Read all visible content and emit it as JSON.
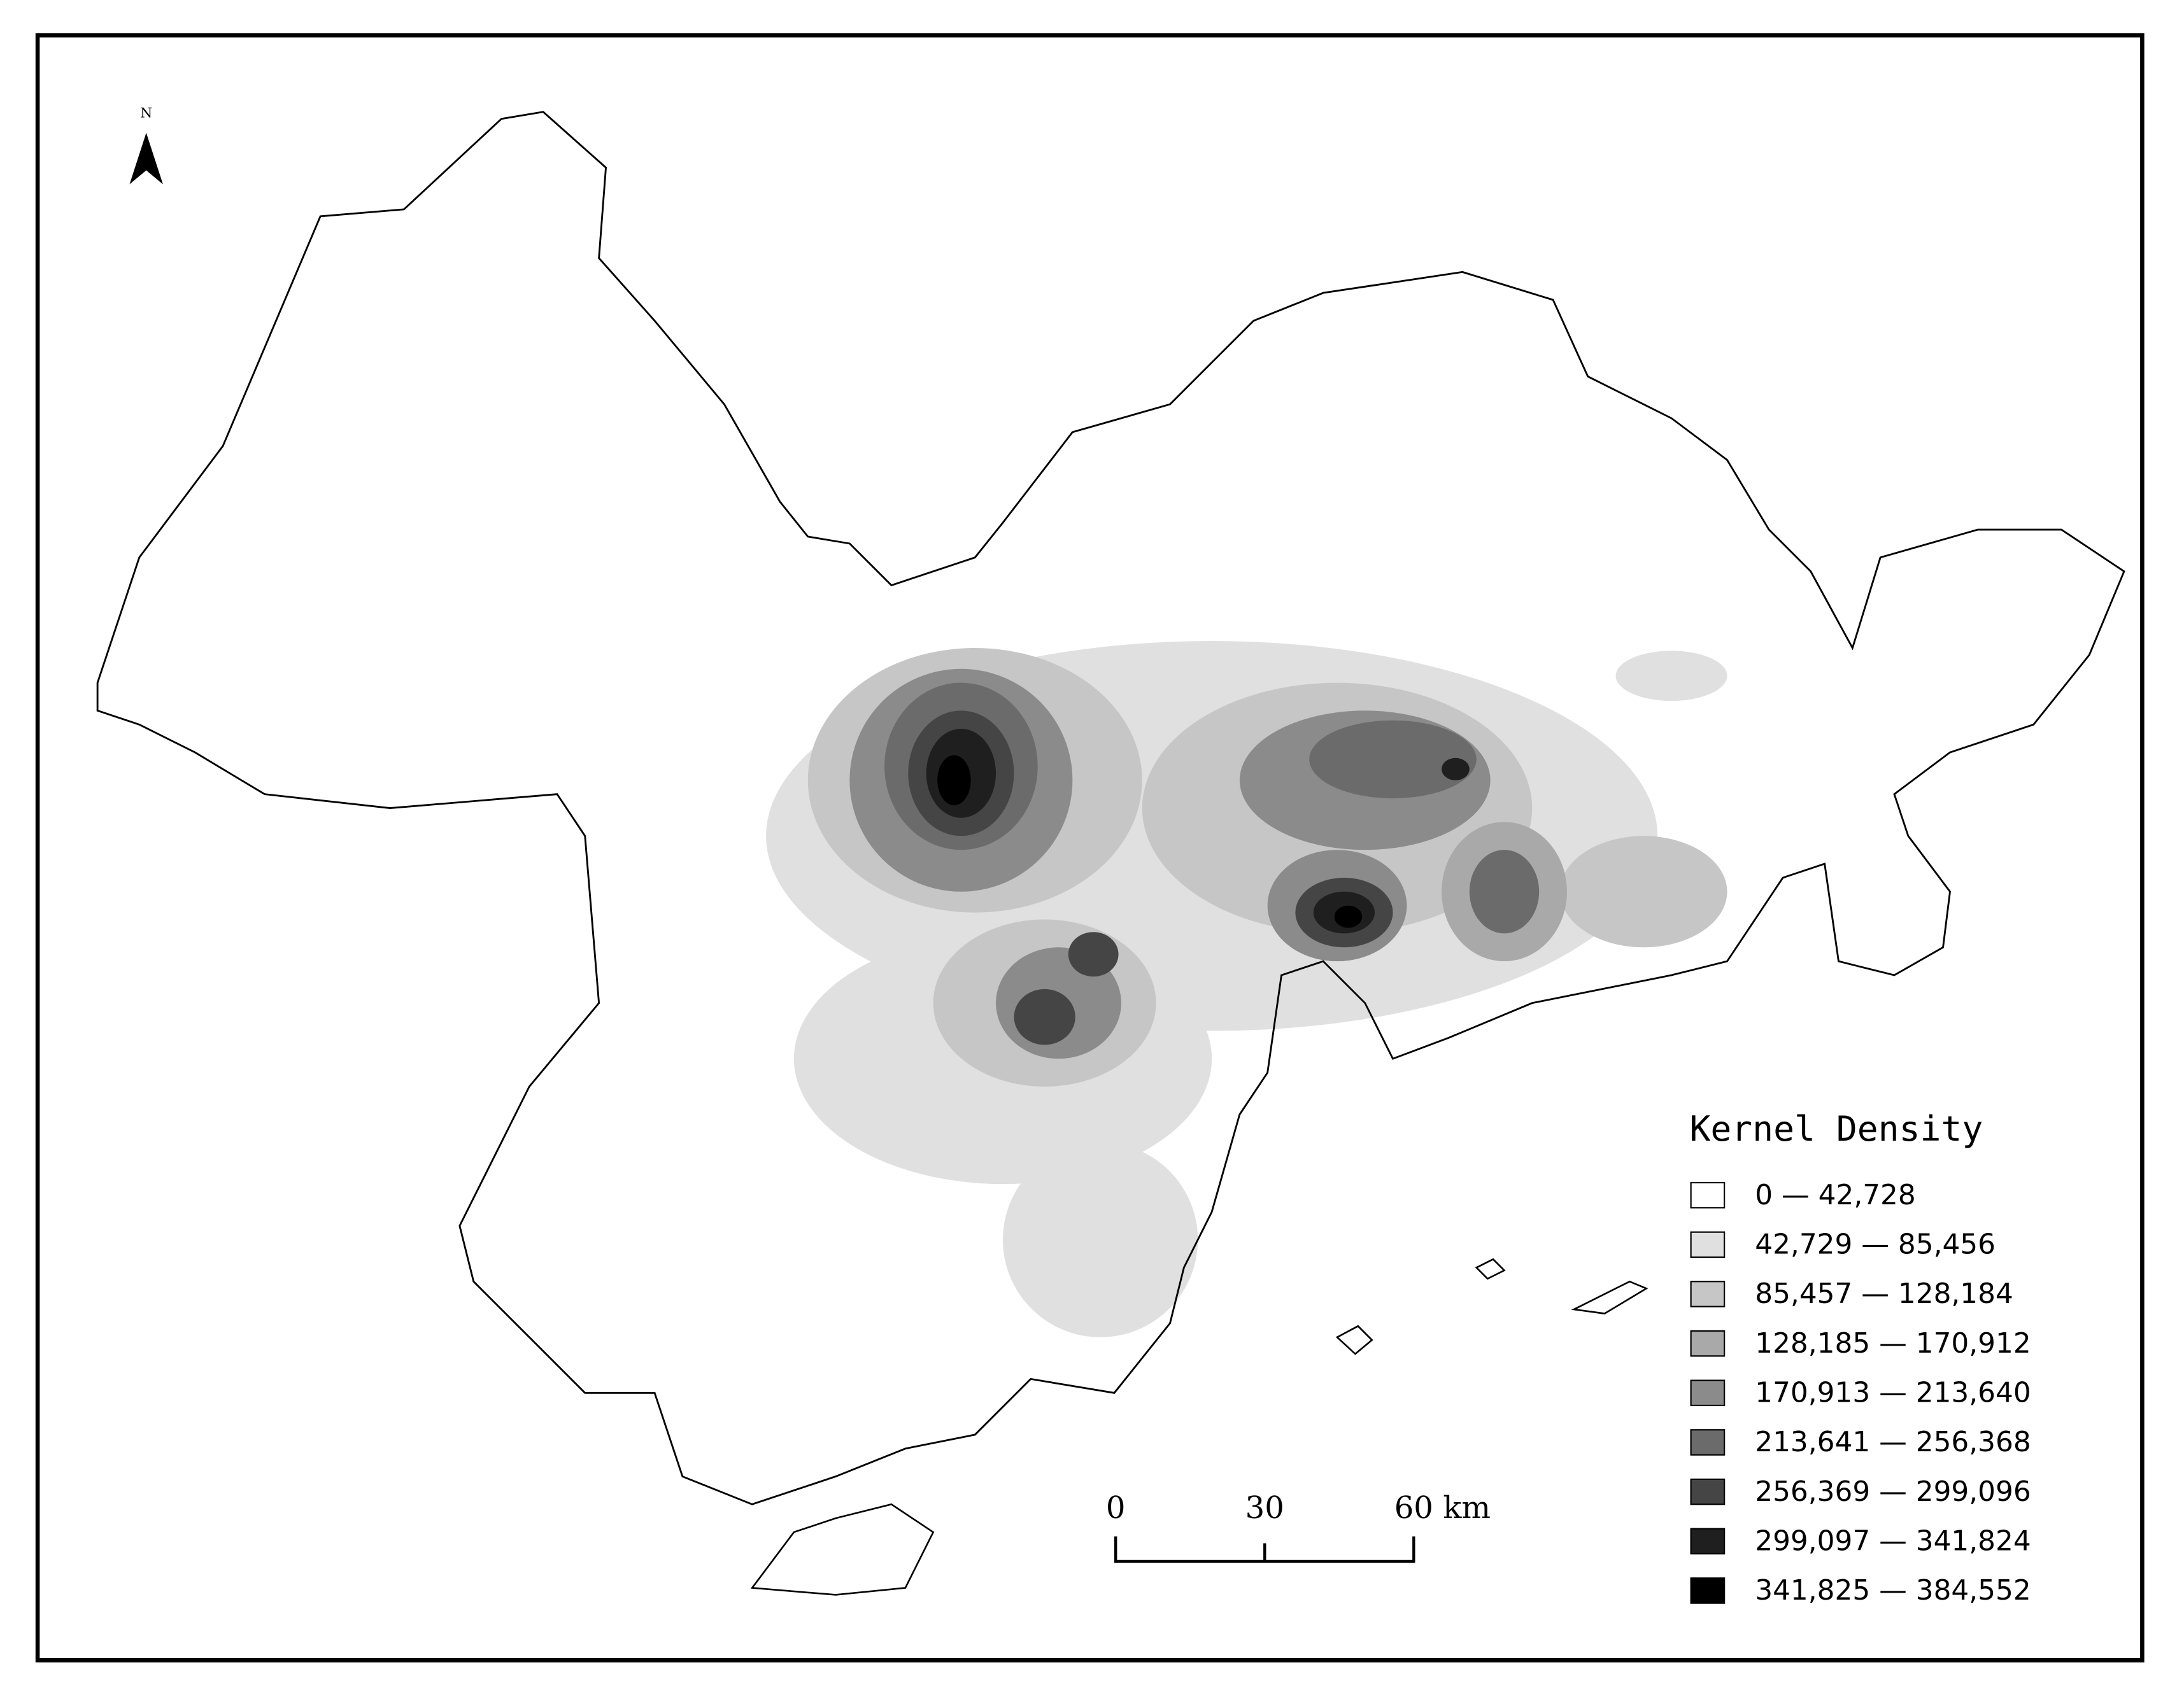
{
  "north_arrow": {
    "label": "N"
  },
  "legend": {
    "title": "Kernel Density",
    "items": [
      {
        "label": "0 — 42,728",
        "color": "#ffffff"
      },
      {
        "label": "42,729 — 85,456",
        "color": "#e0e0e0"
      },
      {
        "label": "85,457 — 128,184",
        "color": "#c6c6c6"
      },
      {
        "label": "128,185 — 170,912",
        "color": "#a9a9a9"
      },
      {
        "label": "170,913 — 213,640",
        "color": "#8b8b8b"
      },
      {
        "label": "213,641 — 256,368",
        "color": "#6b6b6b"
      },
      {
        "label": "256,369 — 299,096",
        "color": "#454545"
      },
      {
        "label": "299,097 — 341,824",
        "color": "#1f1f1f"
      },
      {
        "label": "341,825 — 384,552",
        "color": "#000000"
      }
    ]
  },
  "scale_bar": {
    "labels": [
      "0",
      "30",
      "60"
    ],
    "unit": "km"
  }
}
